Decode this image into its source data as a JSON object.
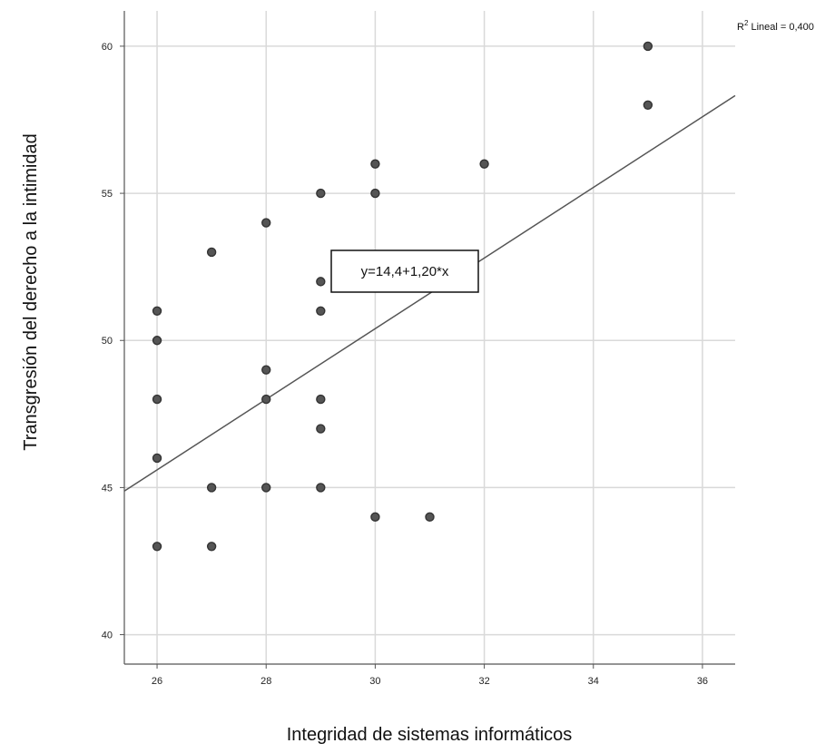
{
  "chart_data": {
    "type": "scatter",
    "title": "",
    "xlabel": "Integridad de sistemas informáticos",
    "ylabel": "Transgresión  del derecho  a la intimidad",
    "xlim": [
      25.4,
      36.6
    ],
    "ylim": [
      39,
      61.2
    ],
    "xticks": [
      26,
      28,
      30,
      32,
      34,
      36
    ],
    "yticks": [
      40,
      45,
      50,
      55,
      60
    ],
    "grid": true,
    "points": [
      {
        "x": 26,
        "y": 51
      },
      {
        "x": 26,
        "y": 50
      },
      {
        "x": 26,
        "y": 48
      },
      {
        "x": 26,
        "y": 46
      },
      {
        "x": 26,
        "y": 43
      },
      {
        "x": 27,
        "y": 53
      },
      {
        "x": 27,
        "y": 45
      },
      {
        "x": 27,
        "y": 43
      },
      {
        "x": 28,
        "y": 54
      },
      {
        "x": 28,
        "y": 49
      },
      {
        "x": 28,
        "y": 48
      },
      {
        "x": 28,
        "y": 45
      },
      {
        "x": 29,
        "y": 55
      },
      {
        "x": 29,
        "y": 52
      },
      {
        "x": 29,
        "y": 51
      },
      {
        "x": 29,
        "y": 48
      },
      {
        "x": 29,
        "y": 47
      },
      {
        "x": 29,
        "y": 45
      },
      {
        "x": 30,
        "y": 56
      },
      {
        "x": 30,
        "y": 55
      },
      {
        "x": 30,
        "y": 44
      },
      {
        "x": 31,
        "y": 44
      },
      {
        "x": 32,
        "y": 56
      },
      {
        "x": 35,
        "y": 60
      },
      {
        "x": 35,
        "y": 58
      }
    ],
    "fit_line": {
      "intercept": 14.4,
      "slope": 1.2
    },
    "annotations": {
      "equation": "y=14,4+1,20*x",
      "r2_prefix": "R",
      "r2_sup": "2",
      "r2_label": " Lineal = ",
      "r2_value": "0,400"
    },
    "colors": {
      "point_fill": "#555555",
      "point_stroke": "#333333",
      "fit_line": "#555555",
      "grid": "#d9d9d9",
      "axis": "#555555"
    }
  }
}
